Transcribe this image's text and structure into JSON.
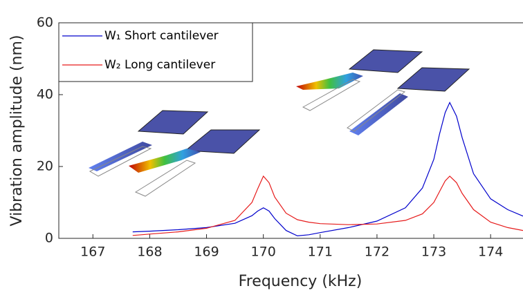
{
  "chart_data": {
    "type": "line",
    "xlabel": "Frequency (kHz)",
    "ylabel": "Vibration amplitude (nm)",
    "x": [
      167.7,
      168,
      168.5,
      169,
      169.5,
      169.8,
      169.9,
      170,
      170.1,
      170.2,
      170.4,
      170.6,
      170.8,
      171,
      171.5,
      172,
      172.5,
      172.8,
      173,
      173.1,
      173.2,
      173.28,
      173.4,
      173.5,
      173.7,
      174,
      174.3,
      174.57
    ],
    "series": [
      {
        "name": "W₁ Short cantilever",
        "color": "#0000cc",
        "values": [
          1.8,
          2.0,
          2.4,
          3.0,
          4.2,
          6.3,
          7.6,
          8.5,
          7.6,
          5.5,
          2.2,
          0.7,
          1.0,
          1.6,
          3.0,
          4.8,
          8.5,
          14,
          22,
          29,
          35,
          37.8,
          34,
          28,
          18,
          11,
          8,
          6.2
        ]
      },
      {
        "name": "W₂ Long cantilever",
        "color": "#e61a1a",
        "values": [
          0.8,
          1.2,
          1.8,
          2.8,
          5.0,
          10.0,
          13.8,
          17.3,
          15.5,
          11.5,
          7.0,
          5.2,
          4.5,
          4.1,
          3.8,
          4.0,
          5.0,
          6.8,
          10.0,
          13.0,
          16.0,
          17.3,
          15.5,
          12.5,
          8.0,
          4.5,
          3.0,
          2.2
        ]
      }
    ],
    "xlim": [
      166.4,
      174.57
    ],
    "xticks": [
      167,
      168,
      169,
      170,
      171,
      172,
      173,
      174
    ],
    "ylim": [
      0,
      60
    ],
    "yticks": [
      0,
      20,
      40,
      60
    ],
    "legend": "upper left"
  }
}
